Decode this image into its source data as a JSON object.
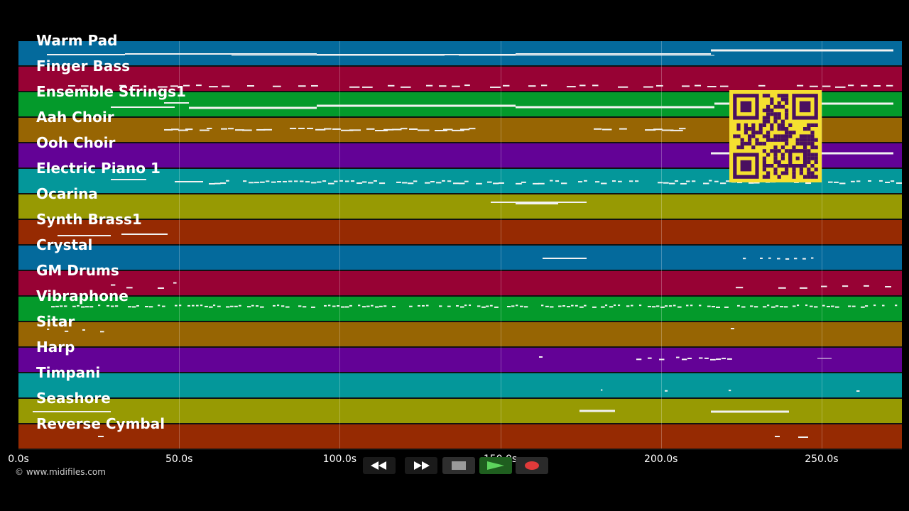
{
  "tracks": [
    {
      "name": "Warm Pad",
      "color": "#046a9c"
    },
    {
      "name": "Finger Bass",
      "color": "#970234"
    },
    {
      "name": "Ensemble Strings1",
      "color": "#049a2b"
    },
    {
      "name": "Aah Choir",
      "color": "#976503"
    },
    {
      "name": "Ooh Choir",
      "color": "#630296"
    },
    {
      "name": "Electric Piano 1",
      "color": "#04979a"
    },
    {
      "name": "Ocarina",
      "color": "#979a03"
    },
    {
      "name": "Synth Brass1",
      "color": "#962a02"
    },
    {
      "name": "Crystal",
      "color": "#046a9c"
    },
    {
      "name": "GM Drums",
      "color": "#970234"
    },
    {
      "name": "Vibraphone",
      "color": "#049a2b"
    },
    {
      "name": "Sitar",
      "color": "#976503"
    },
    {
      "name": "Harp",
      "color": "#630296"
    },
    {
      "name": "Timpani",
      "color": "#04979a"
    },
    {
      "name": "Seashore",
      "color": "#979a03"
    },
    {
      "name": "Reverse Cymbal",
      "color": "#962a02"
    }
  ],
  "axis": {
    "ticks": [
      "0.0s",
      "50.0s",
      "100.0s",
      "150.0s",
      "200.0s",
      "250.0s"
    ],
    "tick_values": [
      0,
      50,
      100,
      150,
      200,
      250
    ],
    "max_seconds": 275
  },
  "copyright": "© www.midifiles.com",
  "qr_colors": {
    "fg": "#4a1060",
    "bg": "#f5e030"
  },
  "transport": {
    "rewind": "rewind-icon",
    "fast_forward": "fast-forward-icon",
    "stop": "stop-icon",
    "play": "play-icon",
    "record": "record-icon"
  }
}
